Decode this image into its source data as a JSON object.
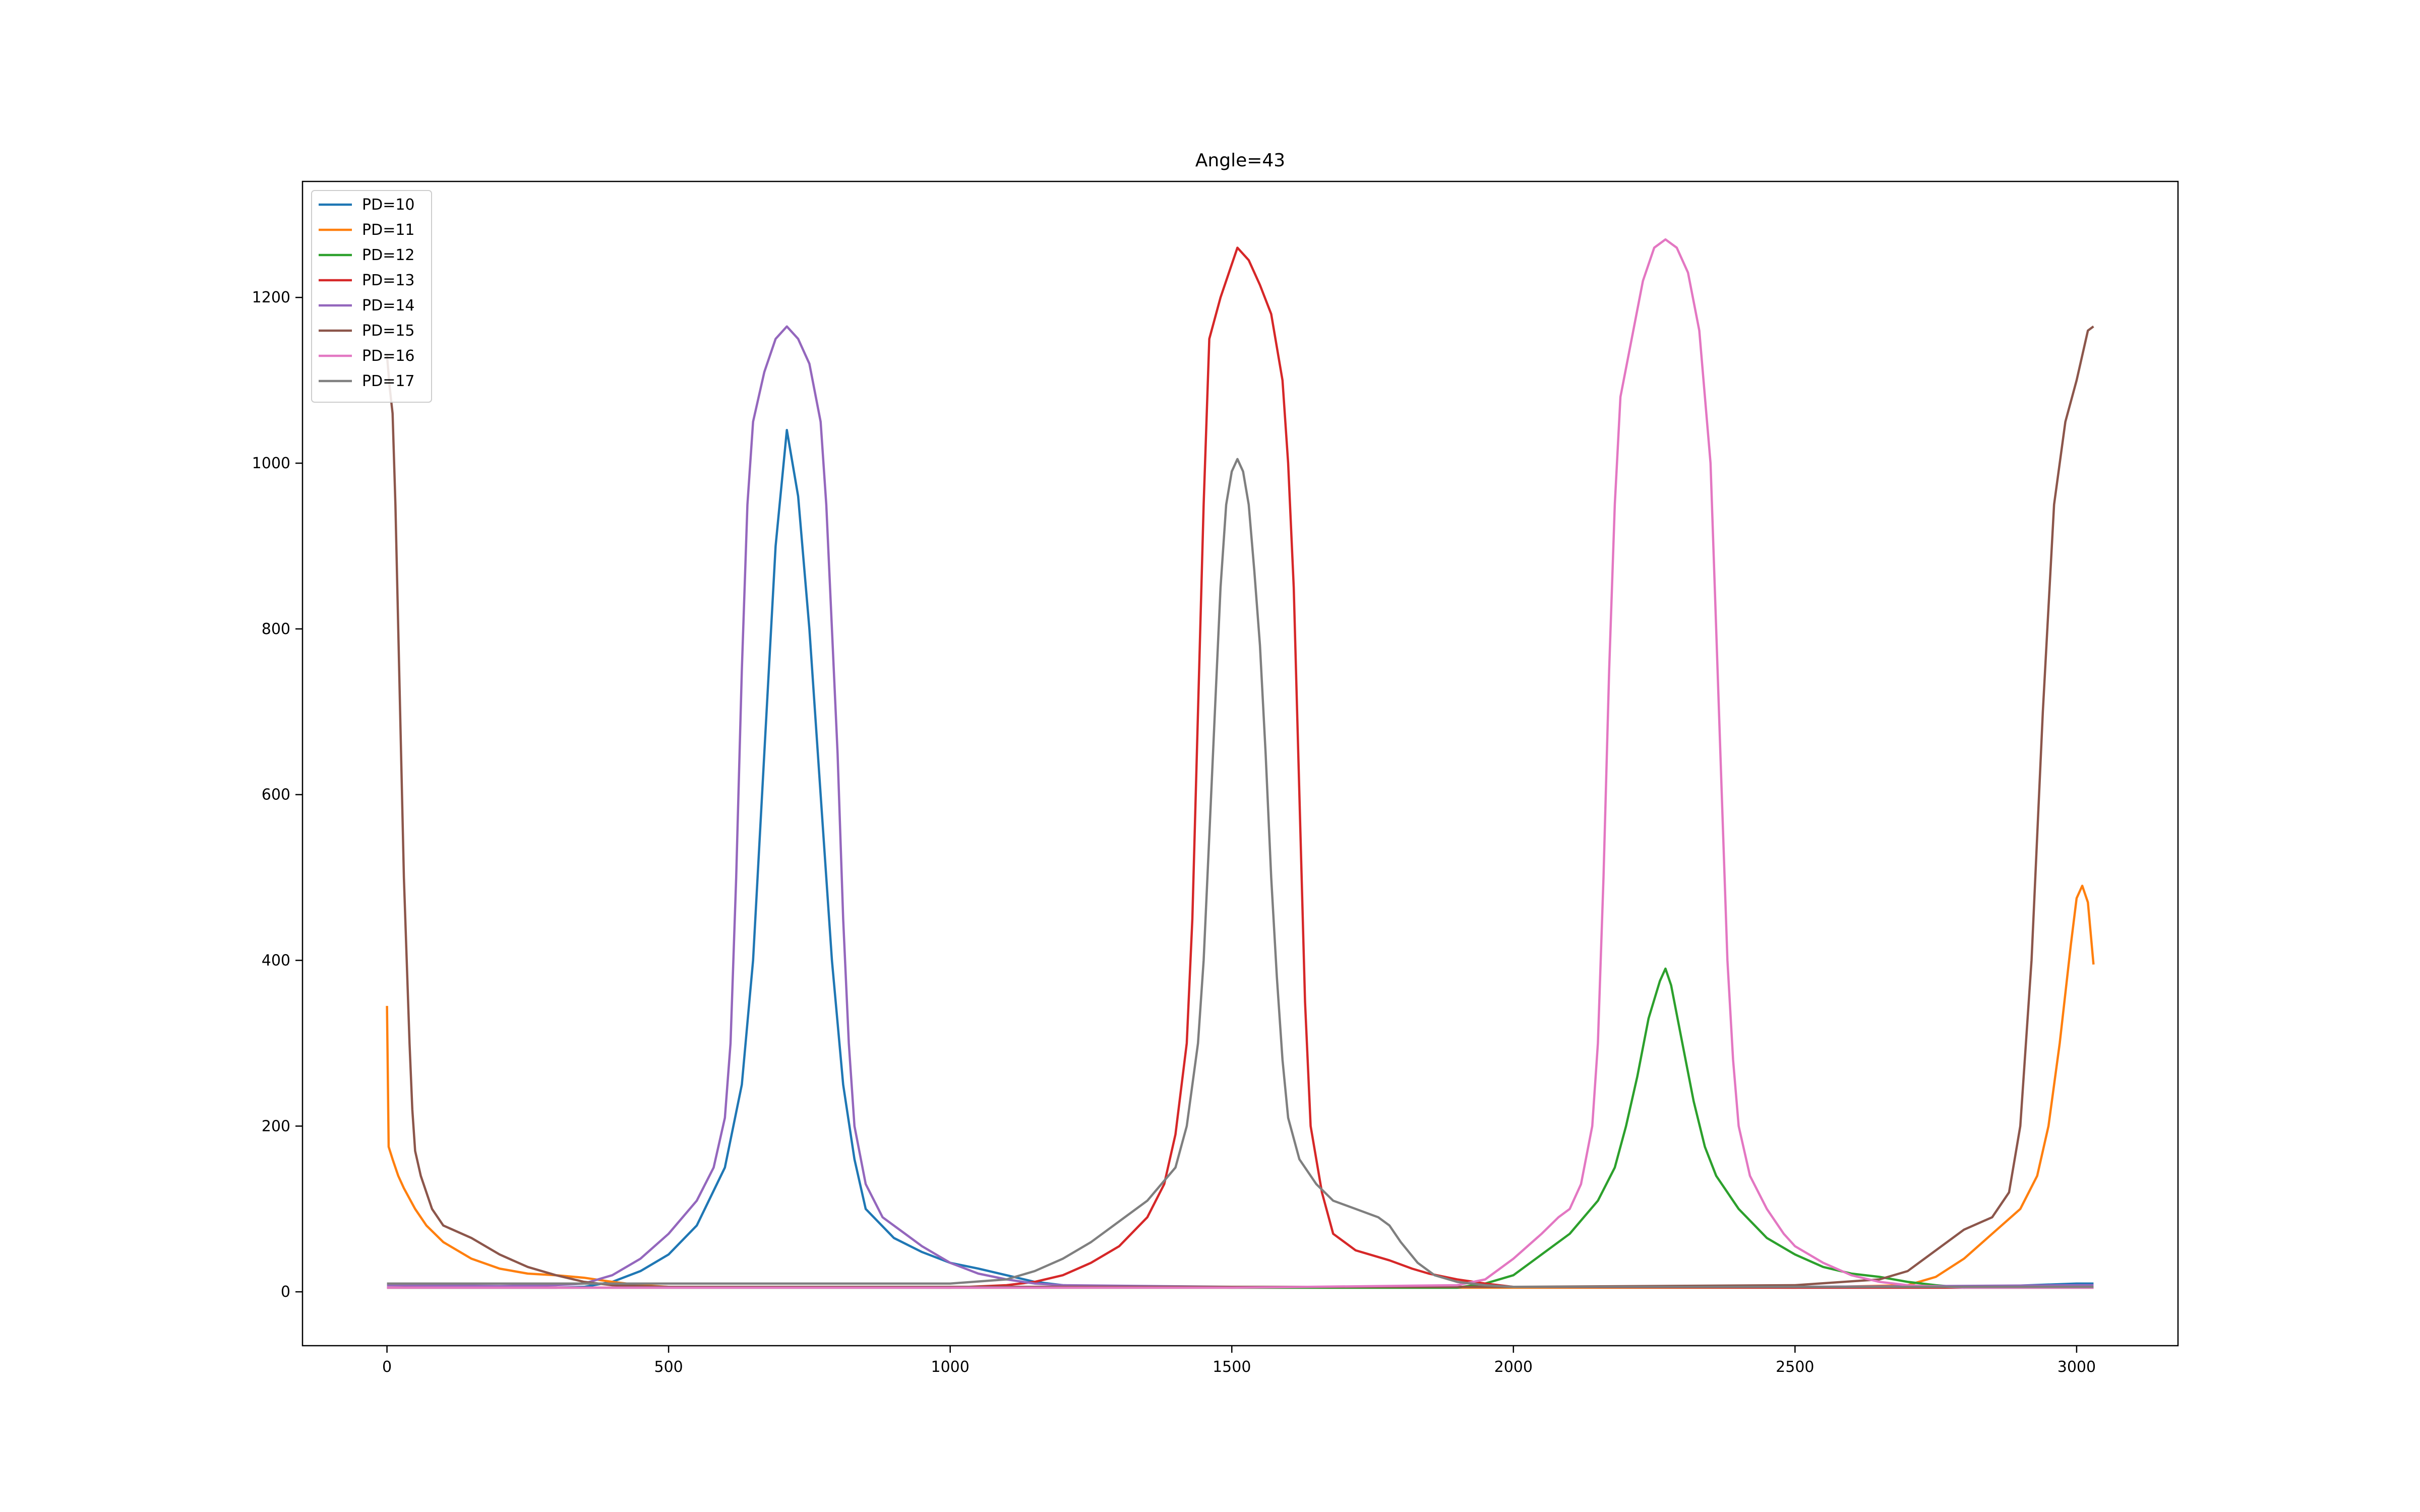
{
  "chart_data": {
    "type": "line",
    "title": "Angle=43",
    "xlabel": "",
    "ylabel": "",
    "xlim": [
      -150,
      3180
    ],
    "ylim": [
      -65,
      1340
    ],
    "xticks": [
      0,
      500,
      1000,
      1500,
      2000,
      2500,
      3000
    ],
    "yticks": [
      0,
      200,
      400,
      600,
      800,
      1000,
      1200
    ],
    "grid": false,
    "legend": "top-left",
    "series": [
      {
        "name": "PD=10",
        "color": "#1f77b4",
        "points": [
          [
            0,
            5
          ],
          [
            100,
            5
          ],
          [
            200,
            5
          ],
          [
            300,
            5
          ],
          [
            350,
            6
          ],
          [
            400,
            12
          ],
          [
            450,
            25
          ],
          [
            500,
            45
          ],
          [
            550,
            80
          ],
          [
            600,
            150
          ],
          [
            630,
            250
          ],
          [
            650,
            400
          ],
          [
            670,
            650
          ],
          [
            690,
            900
          ],
          [
            710,
            1040
          ],
          [
            730,
            960
          ],
          [
            750,
            800
          ],
          [
            770,
            600
          ],
          [
            790,
            400
          ],
          [
            810,
            250
          ],
          [
            830,
            160
          ],
          [
            850,
            100
          ],
          [
            900,
            65
          ],
          [
            950,
            48
          ],
          [
            1000,
            35
          ],
          [
            1050,
            28
          ],
          [
            1100,
            20
          ],
          [
            1150,
            12
          ],
          [
            1200,
            8
          ],
          [
            1300,
            6
          ],
          [
            1500,
            5
          ],
          [
            2000,
            5
          ],
          [
            2500,
            5
          ],
          [
            2800,
            5
          ],
          [
            3000,
            10
          ],
          [
            3030,
            10
          ]
        ]
      },
      {
        "name": "PD=11",
        "color": "#ff7f0e",
        "points": [
          [
            0,
            345
          ],
          [
            3,
            175
          ],
          [
            10,
            160
          ],
          [
            20,
            140
          ],
          [
            30,
            125
          ],
          [
            50,
            100
          ],
          [
            70,
            80
          ],
          [
            100,
            60
          ],
          [
            150,
            40
          ],
          [
            200,
            28
          ],
          [
            250,
            22
          ],
          [
            300,
            20
          ],
          [
            350,
            17
          ],
          [
            400,
            12
          ],
          [
            450,
            8
          ],
          [
            500,
            6
          ],
          [
            1000,
            5
          ],
          [
            1500,
            5
          ],
          [
            2000,
            5
          ],
          [
            2500,
            5
          ],
          [
            2700,
            8
          ],
          [
            2750,
            18
          ],
          [
            2800,
            40
          ],
          [
            2850,
            70
          ],
          [
            2900,
            100
          ],
          [
            2930,
            140
          ],
          [
            2950,
            200
          ],
          [
            2970,
            300
          ],
          [
            2990,
            420
          ],
          [
            3000,
            475
          ],
          [
            3010,
            490
          ],
          [
            3020,
            470
          ],
          [
            3030,
            395
          ]
        ]
      },
      {
        "name": "PD=12",
        "color": "#2ca02c",
        "points": [
          [
            0,
            5
          ],
          [
            500,
            5
          ],
          [
            1000,
            5
          ],
          [
            1500,
            5
          ],
          [
            1900,
            5
          ],
          [
            1950,
            10
          ],
          [
            2000,
            20
          ],
          [
            2050,
            45
          ],
          [
            2100,
            70
          ],
          [
            2150,
            110
          ],
          [
            2180,
            150
          ],
          [
            2200,
            200
          ],
          [
            2220,
            260
          ],
          [
            2240,
            330
          ],
          [
            2260,
            375
          ],
          [
            2270,
            390
          ],
          [
            2280,
            370
          ],
          [
            2300,
            300
          ],
          [
            2320,
            230
          ],
          [
            2340,
            175
          ],
          [
            2360,
            140
          ],
          [
            2400,
            100
          ],
          [
            2450,
            65
          ],
          [
            2500,
            45
          ],
          [
            2550,
            30
          ],
          [
            2600,
            22
          ],
          [
            2650,
            18
          ],
          [
            2700,
            12
          ],
          [
            2750,
            8
          ],
          [
            2800,
            5
          ],
          [
            3000,
            5
          ],
          [
            3030,
            5
          ]
        ]
      },
      {
        "name": "PD=13",
        "color": "#d62728",
        "points": [
          [
            0,
            5
          ],
          [
            500,
            5
          ],
          [
            1000,
            5
          ],
          [
            1100,
            8
          ],
          [
            1150,
            12
          ],
          [
            1200,
            20
          ],
          [
            1250,
            35
          ],
          [
            1300,
            55
          ],
          [
            1350,
            90
          ],
          [
            1380,
            130
          ],
          [
            1400,
            190
          ],
          [
            1420,
            300
          ],
          [
            1430,
            450
          ],
          [
            1440,
            700
          ],
          [
            1450,
            950
          ],
          [
            1460,
            1150
          ],
          [
            1480,
            1200
          ],
          [
            1500,
            1240
          ],
          [
            1510,
            1260
          ],
          [
            1530,
            1245
          ],
          [
            1550,
            1215
          ],
          [
            1570,
            1180
          ],
          [
            1590,
            1100
          ],
          [
            1600,
            1000
          ],
          [
            1610,
            850
          ],
          [
            1620,
            600
          ],
          [
            1630,
            350
          ],
          [
            1640,
            200
          ],
          [
            1660,
            120
          ],
          [
            1680,
            70
          ],
          [
            1720,
            50
          ],
          [
            1780,
            38
          ],
          [
            1820,
            28
          ],
          [
            1850,
            22
          ],
          [
            1900,
            15
          ],
          [
            1950,
            10
          ],
          [
            2000,
            6
          ],
          [
            2500,
            5
          ],
          [
            3030,
            5
          ]
        ]
      },
      {
        "name": "PD=14",
        "color": "#9467bd",
        "points": [
          [
            0,
            8
          ],
          [
            200,
            7
          ],
          [
            300,
            8
          ],
          [
            350,
            10
          ],
          [
            400,
            20
          ],
          [
            450,
            40
          ],
          [
            500,
            70
          ],
          [
            550,
            110
          ],
          [
            580,
            150
          ],
          [
            600,
            210
          ],
          [
            610,
            300
          ],
          [
            620,
            500
          ],
          [
            630,
            750
          ],
          [
            640,
            950
          ],
          [
            650,
            1050
          ],
          [
            670,
            1110
          ],
          [
            690,
            1150
          ],
          [
            710,
            1165
          ],
          [
            730,
            1150
          ],
          [
            750,
            1120
          ],
          [
            770,
            1050
          ],
          [
            780,
            950
          ],
          [
            790,
            800
          ],
          [
            800,
            650
          ],
          [
            810,
            450
          ],
          [
            820,
            300
          ],
          [
            830,
            200
          ],
          [
            850,
            130
          ],
          [
            880,
            90
          ],
          [
            920,
            70
          ],
          [
            950,
            55
          ],
          [
            1000,
            35
          ],
          [
            1050,
            22
          ],
          [
            1100,
            15
          ],
          [
            1150,
            10
          ],
          [
            1200,
            8
          ],
          [
            1500,
            6
          ],
          [
            2000,
            6
          ],
          [
            2500,
            6
          ],
          [
            3000,
            8
          ],
          [
            3030,
            8
          ]
        ]
      },
      {
        "name": "PD=15",
        "color": "#8c564b",
        "points": [
          [
            0,
            1130
          ],
          [
            5,
            1090
          ],
          [
            10,
            1060
          ],
          [
            15,
            950
          ],
          [
            20,
            800
          ],
          [
            25,
            650
          ],
          [
            30,
            500
          ],
          [
            35,
            400
          ],
          [
            40,
            300
          ],
          [
            45,
            220
          ],
          [
            50,
            170
          ],
          [
            60,
            140
          ],
          [
            80,
            100
          ],
          [
            100,
            80
          ],
          [
            150,
            65
          ],
          [
            200,
            45
          ],
          [
            250,
            30
          ],
          [
            300,
            20
          ],
          [
            350,
            12
          ],
          [
            400,
            8
          ],
          [
            500,
            6
          ],
          [
            1000,
            6
          ],
          [
            1500,
            6
          ],
          [
            2000,
            6
          ],
          [
            2500,
            8
          ],
          [
            2650,
            15
          ],
          [
            2700,
            25
          ],
          [
            2750,
            50
          ],
          [
            2800,
            75
          ],
          [
            2850,
            90
          ],
          [
            2880,
            120
          ],
          [
            2900,
            200
          ],
          [
            2920,
            400
          ],
          [
            2940,
            700
          ],
          [
            2960,
            950
          ],
          [
            2980,
            1050
          ],
          [
            3000,
            1100
          ],
          [
            3010,
            1130
          ],
          [
            3020,
            1160
          ],
          [
            3030,
            1165
          ]
        ]
      },
      {
        "name": "PD=16",
        "color": "#e377c2",
        "points": [
          [
            0,
            5
          ],
          [
            500,
            5
          ],
          [
            1000,
            5
          ],
          [
            1500,
            5
          ],
          [
            1900,
            8
          ],
          [
            1950,
            15
          ],
          [
            2000,
            40
          ],
          [
            2050,
            70
          ],
          [
            2080,
            90
          ],
          [
            2100,
            100
          ],
          [
            2120,
            130
          ],
          [
            2140,
            200
          ],
          [
            2150,
            300
          ],
          [
            2160,
            500
          ],
          [
            2170,
            750
          ],
          [
            2180,
            950
          ],
          [
            2190,
            1080
          ],
          [
            2210,
            1150
          ],
          [
            2230,
            1220
          ],
          [
            2250,
            1260
          ],
          [
            2270,
            1270
          ],
          [
            2290,
            1260
          ],
          [
            2310,
            1230
          ],
          [
            2330,
            1160
          ],
          [
            2350,
            1000
          ],
          [
            2360,
            800
          ],
          [
            2370,
            600
          ],
          [
            2380,
            400
          ],
          [
            2390,
            280
          ],
          [
            2400,
            200
          ],
          [
            2420,
            140
          ],
          [
            2450,
            100
          ],
          [
            2480,
            70
          ],
          [
            2500,
            55
          ],
          [
            2550,
            35
          ],
          [
            2600,
            20
          ],
          [
            2650,
            12
          ],
          [
            2700,
            8
          ],
          [
            2800,
            5
          ],
          [
            3030,
            5
          ]
        ]
      },
      {
        "name": "PD=17",
        "color": "#7f7f7f",
        "points": [
          [
            0,
            10
          ],
          [
            500,
            10
          ],
          [
            1000,
            10
          ],
          [
            1100,
            15
          ],
          [
            1150,
            25
          ],
          [
            1200,
            40
          ],
          [
            1250,
            60
          ],
          [
            1300,
            85
          ],
          [
            1350,
            110
          ],
          [
            1400,
            150
          ],
          [
            1420,
            200
          ],
          [
            1440,
            300
          ],
          [
            1450,
            400
          ],
          [
            1460,
            550
          ],
          [
            1470,
            700
          ],
          [
            1480,
            850
          ],
          [
            1490,
            950
          ],
          [
            1500,
            990
          ],
          [
            1510,
            1005
          ],
          [
            1520,
            990
          ],
          [
            1530,
            950
          ],
          [
            1540,
            870
          ],
          [
            1550,
            780
          ],
          [
            1560,
            650
          ],
          [
            1570,
            500
          ],
          [
            1580,
            380
          ],
          [
            1590,
            280
          ],
          [
            1600,
            210
          ],
          [
            1620,
            160
          ],
          [
            1650,
            130
          ],
          [
            1680,
            110
          ],
          [
            1720,
            100
          ],
          [
            1760,
            90
          ],
          [
            1780,
            80
          ],
          [
            1800,
            60
          ],
          [
            1830,
            35
          ],
          [
            1860,
            20
          ],
          [
            1900,
            12
          ],
          [
            1950,
            8
          ],
          [
            2000,
            6
          ],
          [
            2500,
            6
          ],
          [
            3030,
            6
          ]
        ]
      }
    ]
  }
}
